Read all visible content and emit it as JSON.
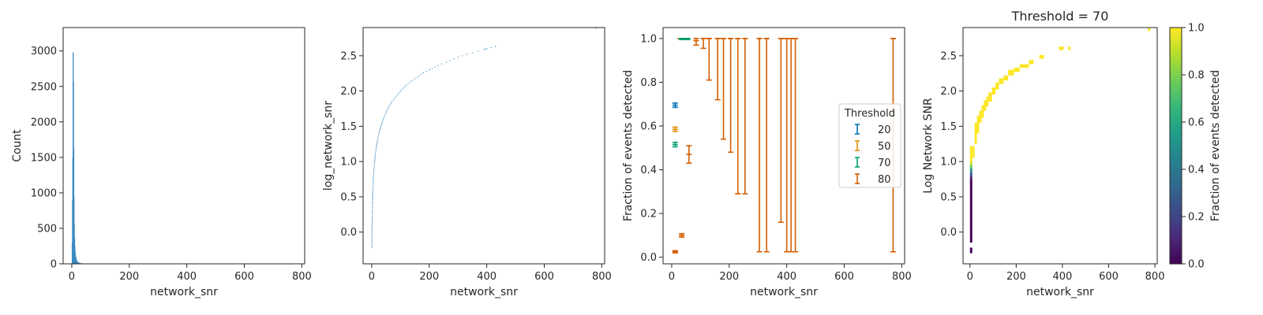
{
  "chart_data": [
    {
      "type": "histogram",
      "xlabel": "network_snr",
      "ylabel": "Count",
      "xlim": [
        -30,
        810
      ],
      "ylim": [
        0,
        3330
      ],
      "xticks": [
        0,
        200,
        400,
        600,
        800
      ],
      "yticks": [
        0,
        500,
        1000,
        1500,
        2000,
        2500,
        3000
      ],
      "color": "#3b8bc2",
      "bars": [
        {
          "x": 0,
          "count": 300
        },
        {
          "x": 1,
          "count": 900
        },
        {
          "x": 2,
          "count": 1500
        },
        {
          "x": 3,
          "count": 2980
        },
        {
          "x": 4,
          "count": 2570
        },
        {
          "x": 5,
          "count": 1630
        },
        {
          "x": 6,
          "count": 940
        },
        {
          "x": 7,
          "count": 560
        },
        {
          "x": 8,
          "count": 360
        },
        {
          "x": 9,
          "count": 250
        },
        {
          "x": 10,
          "count": 175
        },
        {
          "x": 11,
          "count": 130
        },
        {
          "x": 12,
          "count": 100
        },
        {
          "x": 13,
          "count": 78
        },
        {
          "x": 14,
          "count": 62
        },
        {
          "x": 15,
          "count": 50
        },
        {
          "x": 16,
          "count": 42
        },
        {
          "x": 18,
          "count": 32
        },
        {
          "x": 20,
          "count": 25
        },
        {
          "x": 23,
          "count": 18
        },
        {
          "x": 26,
          "count": 14
        },
        {
          "x": 30,
          "count": 10
        },
        {
          "x": 35,
          "count": 8
        },
        {
          "x": 40,
          "count": 6
        },
        {
          "x": 50,
          "count": 5
        },
        {
          "x": 60,
          "count": 4
        },
        {
          "x": 80,
          "count": 3
        },
        {
          "x": 100,
          "count": 2
        },
        {
          "x": 130,
          "count": 2
        },
        {
          "x": 170,
          "count": 1
        },
        {
          "x": 190,
          "count": 1
        },
        {
          "x": 250,
          "count": 1
        }
      ]
    },
    {
      "type": "scatter",
      "xlabel": "network_snr",
      "ylabel": "log_network_snr",
      "xlim": [
        -30,
        810
      ],
      "ylim": [
        -0.45,
        2.9
      ],
      "xticks": [
        0,
        200,
        400,
        600,
        800
      ],
      "yticks": [
        0.0,
        0.5,
        1.0,
        1.5,
        2.0,
        2.5
      ],
      "ytick_labels": [
        "0.0",
        "0.5",
        "1.0",
        "1.5",
        "2.0",
        "2.5"
      ],
      "color": "#3b8bc2",
      "points": [
        [
          0.6,
          -0.22
        ],
        [
          0.8,
          -0.1
        ],
        [
          1,
          0.0
        ],
        [
          1.3,
          0.11
        ],
        [
          1.6,
          0.2
        ],
        [
          2,
          0.3
        ],
        [
          2.5,
          0.4
        ],
        [
          3,
          0.48
        ],
        [
          3.5,
          0.54
        ],
        [
          4,
          0.6
        ],
        [
          5,
          0.7
        ],
        [
          6,
          0.78
        ],
        [
          7,
          0.85
        ],
        [
          8,
          0.9
        ],
        [
          10,
          1.0
        ],
        [
          12,
          1.08
        ],
        [
          15,
          1.18
        ],
        [
          18,
          1.26
        ],
        [
          20,
          1.3
        ],
        [
          25,
          1.4
        ],
        [
          30,
          1.48
        ],
        [
          35,
          1.54
        ],
        [
          40,
          1.6
        ],
        [
          50,
          1.7
        ],
        [
          60,
          1.78
        ],
        [
          70,
          1.85
        ],
        [
          80,
          1.9
        ],
        [
          90,
          1.95
        ],
        [
          100,
          2.0
        ],
        [
          120,
          2.08
        ],
        [
          140,
          2.15
        ],
        [
          160,
          2.2
        ],
        [
          180,
          2.26
        ],
        [
          200,
          2.3
        ],
        [
          230,
          2.36
        ],
        [
          260,
          2.41
        ],
        [
          300,
          2.48
        ],
        [
          330,
          2.52
        ],
        [
          390,
          2.59
        ],
        [
          400,
          2.6
        ],
        [
          430,
          2.63
        ],
        [
          780,
          2.89
        ]
      ]
    },
    {
      "type": "errorbar",
      "xlabel": "network_snr",
      "ylabel": "Fraction of events detected",
      "xlim": [
        -30,
        810
      ],
      "ylim": [
        -0.03,
        1.05
      ],
      "xticks": [
        0,
        200,
        400,
        600,
        800
      ],
      "yticks": [
        0.0,
        0.2,
        0.4,
        0.6,
        0.8,
        1.0
      ],
      "ytick_labels": [
        "0.0",
        "0.2",
        "0.4",
        "0.6",
        "0.8",
        "1.0"
      ],
      "legend": {
        "title": "Threshold",
        "position": "center-right"
      },
      "series": [
        {
          "name": "20",
          "color": "#0173b2",
          "points": [
            {
              "x": 12,
              "y": 0.695,
              "lo": 0.685,
              "hi": 0.705
            },
            {
              "x": 30,
              "y": 1.0,
              "lo": 1.0,
              "hi": 1.0
            },
            {
              "x": 50,
              "y": 1.0,
              "lo": 1.0,
              "hi": 1.0
            }
          ]
        },
        {
          "name": "50",
          "color": "#de8f05",
          "points": [
            {
              "x": 12,
              "y": 0.585,
              "lo": 0.575,
              "hi": 0.595
            },
            {
              "x": 30,
              "y": 1.0,
              "lo": 1.0,
              "hi": 1.0
            },
            {
              "x": 50,
              "y": 1.0,
              "lo": 1.0,
              "hi": 1.0
            }
          ]
        },
        {
          "name": "70",
          "color": "#029e73",
          "points": [
            {
              "x": 12,
              "y": 0.515,
              "lo": 0.505,
              "hi": 0.525
            },
            {
              "x": 35,
              "y": 1.0,
              "lo": 0.995,
              "hi": 1.0
            },
            {
              "x": 55,
              "y": 1.0,
              "lo": 0.995,
              "hi": 1.0
            }
          ]
        },
        {
          "name": "80",
          "color": "#d55e00",
          "points": [
            {
              "x": 12,
              "y": 0.025,
              "lo": 0.02,
              "hi": 0.03
            },
            {
              "x": 35,
              "y": 0.1,
              "lo": 0.092,
              "hi": 0.108
            },
            {
              "x": 60,
              "y": 0.47,
              "lo": 0.43,
              "hi": 0.51
            },
            {
              "x": 85,
              "y": 0.99,
              "lo": 0.97,
              "hi": 1.0
            },
            {
              "x": 110,
              "y": 1.0,
              "lo": 0.955,
              "hi": 1.0
            },
            {
              "x": 130,
              "y": 1.0,
              "lo": 0.81,
              "hi": 1.0
            },
            {
              "x": 160,
              "y": 1.0,
              "lo": 0.72,
              "hi": 1.0
            },
            {
              "x": 180,
              "y": 1.0,
              "lo": 0.54,
              "hi": 1.0
            },
            {
              "x": 205,
              "y": 1.0,
              "lo": 0.48,
              "hi": 1.0
            },
            {
              "x": 230,
              "y": 1.0,
              "lo": 0.29,
              "hi": 1.0
            },
            {
              "x": 255,
              "y": 1.0,
              "lo": 0.29,
              "hi": 1.0
            },
            {
              "x": 305,
              "y": 1.0,
              "lo": 0.025,
              "hi": 1.0
            },
            {
              "x": 330,
              "y": 1.0,
              "lo": 0.025,
              "hi": 1.0
            },
            {
              "x": 380,
              "y": 1.0,
              "lo": 0.16,
              "hi": 1.0
            },
            {
              "x": 400,
              "y": 1.0,
              "lo": 0.025,
              "hi": 1.0
            },
            {
              "x": 415,
              "y": 1.0,
              "lo": 0.025,
              "hi": 1.0
            },
            {
              "x": 430,
              "y": 1.0,
              "lo": 0.025,
              "hi": 1.0
            },
            {
              "x": 770,
              "y": 1.0,
              "lo": 0.025,
              "hi": 1.0
            }
          ]
        }
      ]
    },
    {
      "type": "heatmap",
      "title": "Threshold = 70",
      "xlabel": "network_snr",
      "ylabel": "Log Network SNR",
      "xlim": [
        -30,
        810
      ],
      "ylim": [
        -0.45,
        2.9
      ],
      "xticks": [
        0,
        200,
        400,
        600,
        800
      ],
      "yticks": [
        0.0,
        0.5,
        1.0,
        1.5,
        2.0,
        2.5
      ],
      "ytick_labels": [
        "0.0",
        "0.5",
        "1.0",
        "1.5",
        "2.0",
        "2.5"
      ],
      "colorbar": {
        "label": "Fraction of events detected",
        "min": 0,
        "max": 1,
        "ticks": [
          0.0,
          0.2,
          0.4,
          0.6,
          0.8,
          1.0
        ],
        "tick_labels": [
          "0.0",
          "0.2",
          "0.4",
          "0.6",
          "0.8",
          "1.0"
        ],
        "colormap": "viridis"
      },
      "cells": [
        {
          "x0": 0,
          "x1": 10,
          "y0": -0.3,
          "y1": -0.22,
          "v": 0.0
        },
        {
          "x0": 0,
          "x1": 10,
          "y0": -0.15,
          "y1": 0.75,
          "v": 0.0
        },
        {
          "x0": 0,
          "x1": 10,
          "y0": 0.75,
          "y1": 0.8,
          "v": 0.12
        },
        {
          "x0": 0,
          "x1": 10,
          "y0": 0.8,
          "y1": 0.85,
          "v": 0.3
        },
        {
          "x0": 0,
          "x1": 10,
          "y0": 0.85,
          "y1": 0.9,
          "v": 0.5
        },
        {
          "x0": 0,
          "x1": 10,
          "y0": 0.9,
          "y1": 0.95,
          "v": 0.75
        },
        {
          "x0": 0,
          "x1": 10,
          "y0": 0.95,
          "y1": 1.0,
          "v": 0.92
        },
        {
          "x0": 0,
          "x1": 10,
          "y0": 1.0,
          "y1": 1.22,
          "v": 1.0
        },
        {
          "x0": 10,
          "x1": 20,
          "y0": 1.05,
          "y1": 1.22,
          "v": 1.0
        },
        {
          "x0": 20,
          "x1": 30,
          "y0": 1.25,
          "y1": 1.55,
          "v": 1.0
        },
        {
          "x0": 30,
          "x1": 40,
          "y0": 1.4,
          "y1": 1.65,
          "v": 1.0
        },
        {
          "x0": 40,
          "x1": 50,
          "y0": 1.55,
          "y1": 1.72,
          "v": 1.0
        },
        {
          "x0": 50,
          "x1": 60,
          "y0": 1.62,
          "y1": 1.8,
          "v": 1.0
        },
        {
          "x0": 60,
          "x1": 70,
          "y0": 1.72,
          "y1": 1.87,
          "v": 1.0
        },
        {
          "x0": 70,
          "x1": 80,
          "y0": 1.78,
          "y1": 1.92,
          "v": 1.0
        },
        {
          "x0": 80,
          "x1": 95,
          "y0": 1.85,
          "y1": 1.98,
          "v": 1.0
        },
        {
          "x0": 95,
          "x1": 110,
          "y0": 1.95,
          "y1": 2.05,
          "v": 1.0
        },
        {
          "x0": 110,
          "x1": 125,
          "y0": 2.02,
          "y1": 2.12,
          "v": 1.0
        },
        {
          "x0": 125,
          "x1": 145,
          "y0": 2.1,
          "y1": 2.18,
          "v": 1.0
        },
        {
          "x0": 145,
          "x1": 165,
          "y0": 2.15,
          "y1": 2.22,
          "v": 1.0
        },
        {
          "x0": 165,
          "x1": 190,
          "y0": 2.22,
          "y1": 2.3,
          "v": 1.0
        },
        {
          "x0": 190,
          "x1": 215,
          "y0": 2.27,
          "y1": 2.33,
          "v": 1.0
        },
        {
          "x0": 215,
          "x1": 255,
          "y0": 2.33,
          "y1": 2.38,
          "v": 1.0
        },
        {
          "x0": 255,
          "x1": 275,
          "y0": 2.38,
          "y1": 2.44,
          "v": 1.0
        },
        {
          "x0": 300,
          "x1": 320,
          "y0": 2.46,
          "y1": 2.51,
          "v": 1.0
        },
        {
          "x0": 385,
          "x1": 405,
          "y0": 2.58,
          "y1": 2.63,
          "v": 1.0
        },
        {
          "x0": 425,
          "x1": 435,
          "y0": 2.58,
          "y1": 2.63,
          "v": 1.0
        },
        {
          "x0": 770,
          "x1": 780,
          "y0": 2.85,
          "y1": 2.9,
          "v": 1.0
        }
      ]
    }
  ]
}
